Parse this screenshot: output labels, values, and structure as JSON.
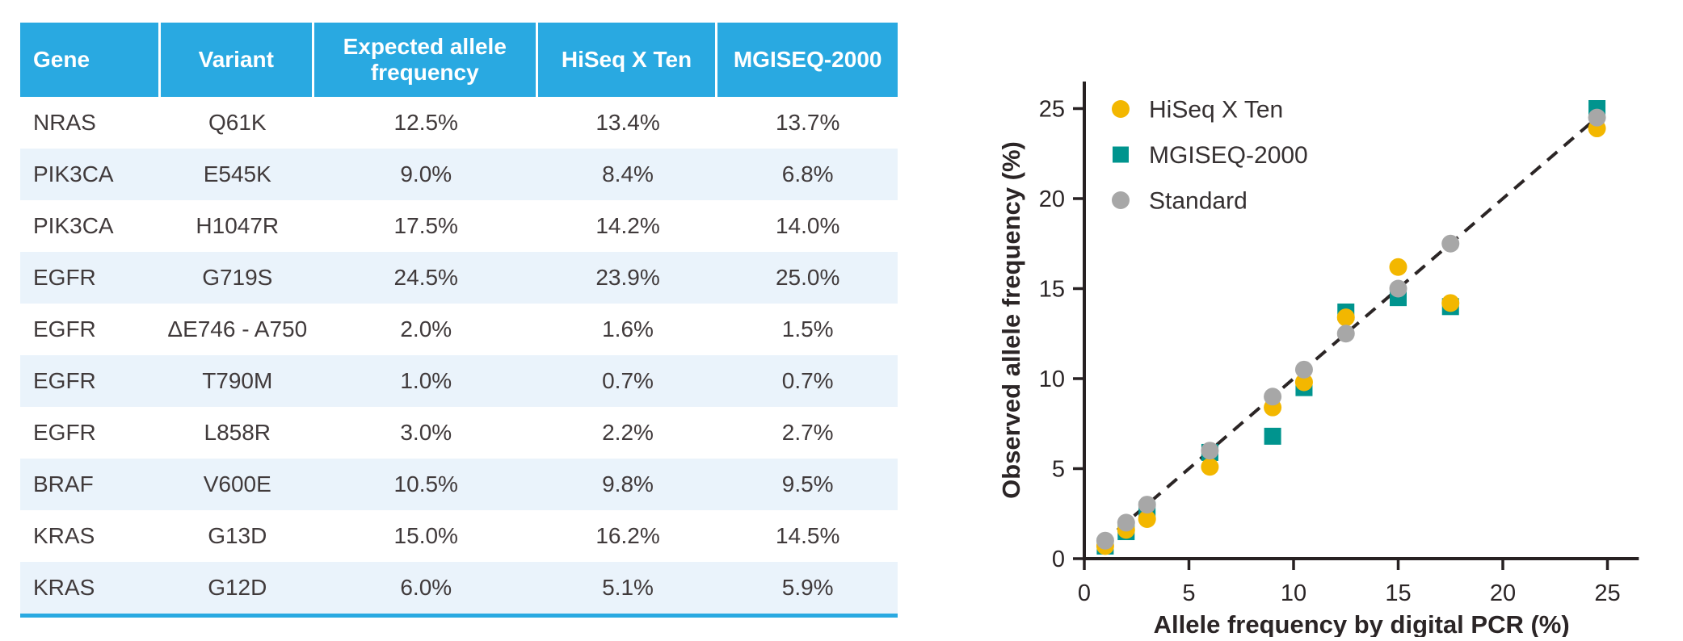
{
  "table": {
    "headers": [
      "Gene",
      "Variant",
      "Expected allele frequency",
      "HiSeq X Ten",
      "MGISEQ-2000"
    ],
    "rows": [
      [
        "NRAS",
        "Q61K",
        "12.5%",
        "13.4%",
        "13.7%"
      ],
      [
        "PIK3CA",
        "E545K",
        "9.0%",
        "8.4%",
        "6.8%"
      ],
      [
        "PIK3CA",
        "H1047R",
        "17.5%",
        "14.2%",
        "14.0%"
      ],
      [
        "EGFR",
        "G719S",
        "24.5%",
        "23.9%",
        "25.0%"
      ],
      [
        "EGFR",
        "ΔE746 - A750",
        "2.0%",
        "1.6%",
        "1.5%"
      ],
      [
        "EGFR",
        "T790M",
        "1.0%",
        "0.7%",
        "0.7%"
      ],
      [
        "EGFR",
        "L858R",
        "3.0%",
        "2.2%",
        "2.7%"
      ],
      [
        "BRAF",
        "V600E",
        "10.5%",
        "9.8%",
        "9.5%"
      ],
      [
        "KRAS",
        "G13D",
        "15.0%",
        "16.2%",
        "14.5%"
      ],
      [
        "KRAS",
        "G12D",
        "6.0%",
        "5.1%",
        "5.9%"
      ]
    ],
    "header_bg": "#29A9E1",
    "row_alt_bg": "#EAF3FB",
    "header_text_color": "#FFFFFF",
    "body_text_color": "#403A3B"
  },
  "chart_data": {
    "type": "scatter",
    "title": "",
    "xlabel": "Allele frequency by digital PCR (%)",
    "ylabel": "Observed allele frequency (%)",
    "xlim": [
      0,
      26.5
    ],
    "ylim": [
      0,
      26.5
    ],
    "xticks": [
      0,
      5,
      10,
      15,
      20,
      25
    ],
    "yticks": [
      0,
      5,
      10,
      15,
      20,
      25
    ],
    "grid": false,
    "legend_position": "top-left",
    "axis_color": "#272122",
    "identity_line": {
      "style": "dashed",
      "color": "#2B2525",
      "from": [
        0.8,
        0.8
      ],
      "to": [
        24.6,
        24.6
      ]
    },
    "series": [
      {
        "name": "HiSeq X Ten",
        "marker": "circle",
        "color": "#F3B700",
        "points": [
          [
            1,
            0.7
          ],
          [
            2,
            1.6
          ],
          [
            3,
            2.2
          ],
          [
            6,
            5.1
          ],
          [
            9,
            8.4
          ],
          [
            10.5,
            9.8
          ],
          [
            12.5,
            13.4
          ],
          [
            15,
            16.2
          ],
          [
            17.5,
            14.2
          ],
          [
            24.5,
            23.9
          ]
        ]
      },
      {
        "name": "MGISEQ-2000",
        "marker": "square",
        "color": "#00948E",
        "points": [
          [
            1,
            0.7
          ],
          [
            2,
            1.5
          ],
          [
            3,
            2.7
          ],
          [
            6,
            5.9
          ],
          [
            9,
            6.8
          ],
          [
            10.5,
            9.5
          ],
          [
            12.5,
            13.7
          ],
          [
            15,
            14.5
          ],
          [
            17.5,
            14.0
          ],
          [
            24.5,
            25.0
          ]
        ]
      },
      {
        "name": "Standard",
        "marker": "circle",
        "color": "#A7A7A7",
        "points": [
          [
            1,
            1
          ],
          [
            2,
            2
          ],
          [
            3,
            3
          ],
          [
            6,
            6
          ],
          [
            9,
            9
          ],
          [
            10.5,
            10.5
          ],
          [
            12.5,
            12.5
          ],
          [
            15,
            15
          ],
          [
            17.5,
            17.5
          ],
          [
            24.5,
            24.5
          ]
        ]
      }
    ]
  }
}
